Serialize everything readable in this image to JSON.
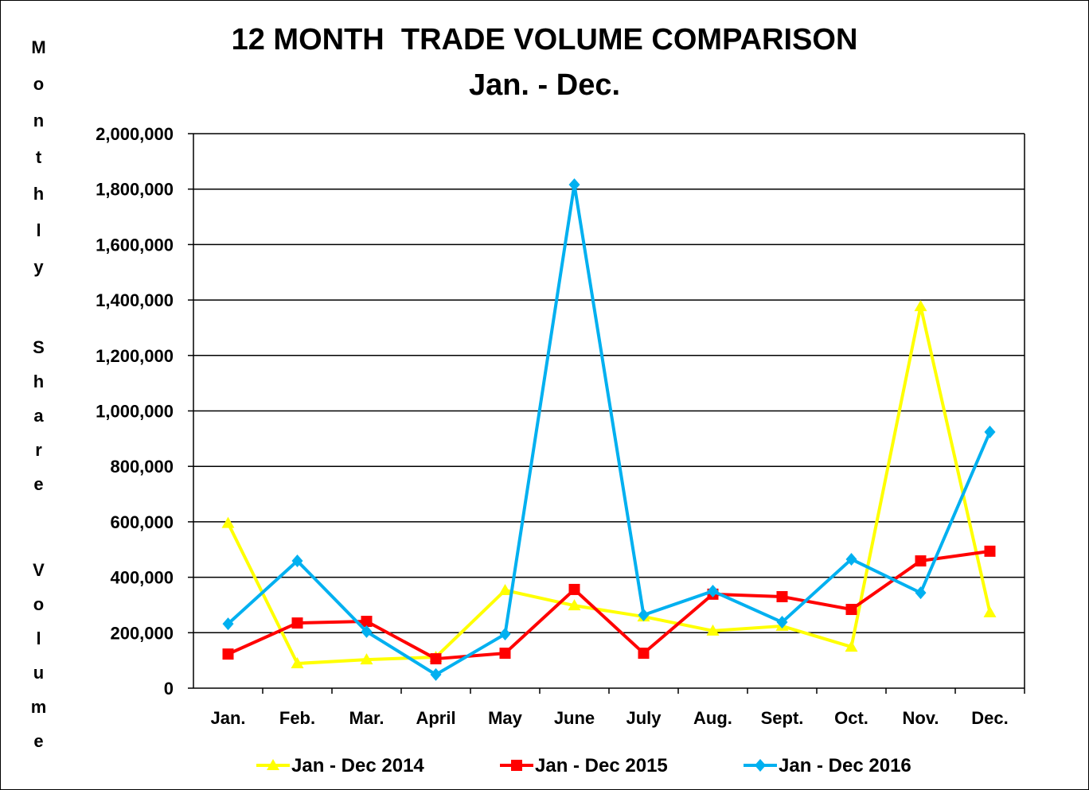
{
  "chart_data": {
    "type": "line",
    "title": "12 MONTH  TRADE VOLUME COMPARISON",
    "subtitle": "Jan. - Dec.",
    "xlabel": "",
    "ylabel": "Monthly Share Volume",
    "ylabel_lines": [
      "Monthly",
      "Share",
      "Volume"
    ],
    "ylim": [
      0,
      2000000
    ],
    "yticks": [
      0,
      200000,
      400000,
      600000,
      800000,
      1000000,
      1200000,
      1400000,
      1600000,
      1800000,
      2000000
    ],
    "ytick_labels": [
      "0",
      "200,000",
      "400,000",
      "600,000",
      "800,000",
      "1,000,000",
      "1,200,000",
      "1,400,000",
      "1,600,000",
      "1,800,000",
      "2,000,000"
    ],
    "grid": true,
    "legend": "bottom",
    "categories": [
      "Jan.",
      "Feb.",
      "Mar.",
      "April",
      "May",
      "June",
      "July",
      "Aug.",
      "Sept.",
      "Oct.",
      "Nov.",
      "Dec."
    ],
    "series": [
      {
        "name": "Jan - Dec 2014",
        "color": "#FFFF00",
        "marker": "triangle",
        "values": [
          595000,
          89000,
          103000,
          112000,
          353000,
          298000,
          258000,
          207000,
          224000,
          149000,
          1377000,
          273000
        ]
      },
      {
        "name": "Jan - Dec 2015",
        "color": "#FF0000",
        "marker": "square",
        "values": [
          123000,
          235000,
          241000,
          106000,
          126000,
          356000,
          126000,
          339000,
          330000,
          284000,
          459000,
          494000
        ]
      },
      {
        "name": "Jan - Dec 2016",
        "color": "#00B0F0",
        "marker": "diamond",
        "values": [
          232000,
          459000,
          204000,
          49000,
          195000,
          1816000,
          264000,
          350000,
          238000,
          465000,
          344000,
          924000
        ]
      }
    ]
  }
}
